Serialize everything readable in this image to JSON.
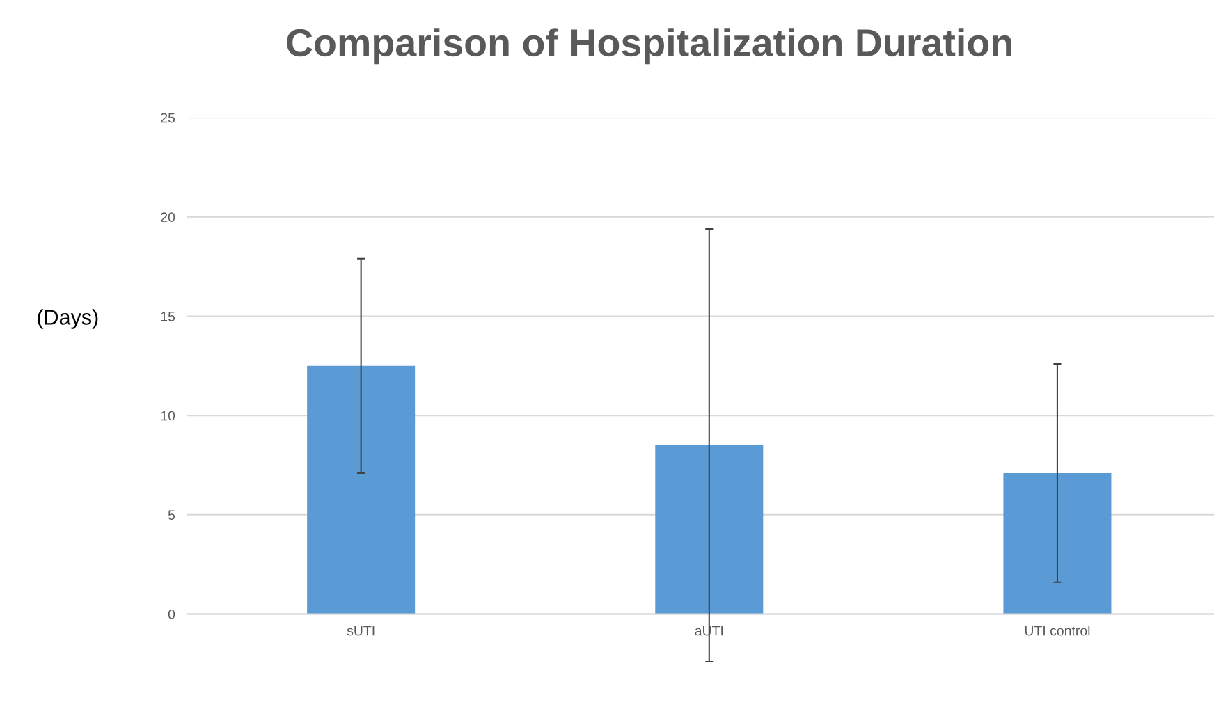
{
  "chart_data": {
    "type": "bar",
    "title": "Comparison of Hospitalization Duration",
    "ylabel": "(Days)",
    "categories": [
      "sUTI",
      "aUTI",
      "UTI control"
    ],
    "values": [
      12.5,
      8.5,
      7.1
    ],
    "color": "#5b9bd5",
    "errors": [
      5.4,
      10.9,
      5.5
    ],
    "ylim": [
      -2.5,
      25
    ],
    "yticks": [
      0,
      5,
      10,
      15,
      20,
      25
    ],
    "grid": "y"
  }
}
